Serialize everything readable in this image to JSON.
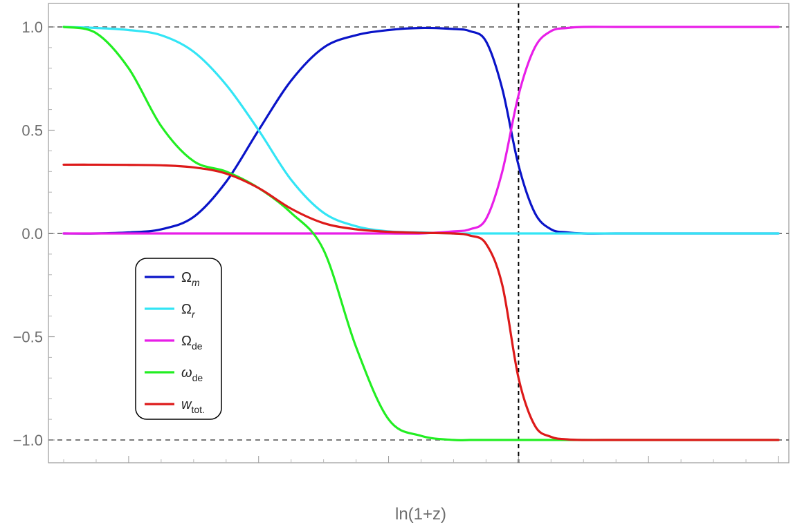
{
  "chart_data": {
    "type": "line",
    "xlabel": "ln(1+z)",
    "ylabel": "",
    "title": "",
    "ylim": [
      -1.1,
      1.1
    ],
    "y_ticks": [
      {
        "value": 1.0,
        "label": "1.0"
      },
      {
        "value": 0.5,
        "label": "0.5"
      },
      {
        "value": 0.0,
        "label": "0.0"
      },
      {
        "value": -0.5,
        "label": "-0.5"
      },
      {
        "value": -1.0,
        "label": "-1.0"
      }
    ],
    "x_tick_labels_shown": false,
    "grid": false,
    "legend_position": "left",
    "reference_lines": [
      {
        "orientation": "horizontal",
        "y": 1.0,
        "style": "dashed",
        "color": "#7a7a7a"
      },
      {
        "orientation": "horizontal",
        "y": 0.0,
        "style": "dashed",
        "color": "#7a7a7a"
      },
      {
        "orientation": "horizontal",
        "y": -1.0,
        "style": "dashed",
        "color": "#7a7a7a"
      },
      {
        "orientation": "vertical",
        "x": 0.0,
        "style": "dashed",
        "color": "#000000"
      }
    ],
    "x": [
      -7.0,
      -6.5,
      -6.0,
      -5.5,
      -5.0,
      -4.5,
      -4.0,
      -3.5,
      -3.0,
      -2.5,
      -2.0,
      -1.5,
      -1.0,
      -0.75,
      -0.5,
      -0.25,
      0.0,
      0.25,
      0.5,
      0.75,
      1.0,
      1.5,
      2.0,
      2.5,
      3.0,
      3.5,
      4.0
    ],
    "series": [
      {
        "base": "Ω",
        "sub": "m",
        "italic_sub": true,
        "color": "#0a14c8",
        "values": [
          0.0,
          0.0,
          0.005,
          0.02,
          0.08,
          0.25,
          0.5,
          0.74,
          0.9,
          0.96,
          0.985,
          0.995,
          0.99,
          0.98,
          0.93,
          0.7,
          0.33,
          0.1,
          0.02,
          0.005,
          0.0,
          0.0,
          0.0,
          0.0,
          0.0,
          0.0,
          0.0
        ]
      },
      {
        "base": "Ω",
        "sub": "r",
        "italic_sub": true,
        "color": "#33e5f5",
        "values": [
          1.0,
          0.995,
          0.985,
          0.96,
          0.88,
          0.72,
          0.5,
          0.26,
          0.1,
          0.035,
          0.01,
          0.005,
          0.0,
          0.0,
          0.0,
          0.0,
          0.0,
          0.0,
          0.0,
          0.0,
          0.0,
          0.0,
          0.0,
          0.0,
          0.0,
          0.0,
          0.0
        ]
      },
      {
        "base": "Ω",
        "sub": "de",
        "italic_sub": false,
        "color": "#e81ee8",
        "values": [
          0.0,
          0.0,
          0.0,
          0.0,
          0.0,
          0.0,
          0.0,
          0.0,
          0.0,
          0.0,
          0.0,
          0.0,
          0.01,
          0.02,
          0.07,
          0.3,
          0.67,
          0.9,
          0.98,
          0.995,
          1.0,
          1.0,
          1.0,
          1.0,
          1.0,
          1.0,
          1.0
        ]
      },
      {
        "base": "ω",
        "sub": "de",
        "italic_sub": false,
        "italic_base": true,
        "color": "#22ee22",
        "values": [
          1.0,
          0.97,
          0.8,
          0.52,
          0.35,
          0.3,
          0.22,
          0.1,
          -0.08,
          -0.55,
          -0.9,
          -0.98,
          -1.0,
          -1.0,
          -1.0,
          -1.0,
          -1.0,
          -1.0,
          -1.0,
          -1.0,
          -1.0,
          -1.0,
          -1.0,
          -1.0,
          -1.0,
          -1.0,
          -1.0
        ]
      },
      {
        "base": "w",
        "sub": "tot.",
        "italic_sub": false,
        "italic_base": true,
        "color": "#dd1a1a",
        "values": [
          0.333,
          0.333,
          0.332,
          0.33,
          0.32,
          0.29,
          0.22,
          0.12,
          0.05,
          0.02,
          0.008,
          0.003,
          0.0,
          -0.01,
          -0.05,
          -0.25,
          -0.7,
          -0.93,
          -0.985,
          -0.997,
          -1.0,
          -1.0,
          -1.0,
          -1.0,
          -1.0,
          -1.0,
          -1.0
        ]
      }
    ]
  }
}
